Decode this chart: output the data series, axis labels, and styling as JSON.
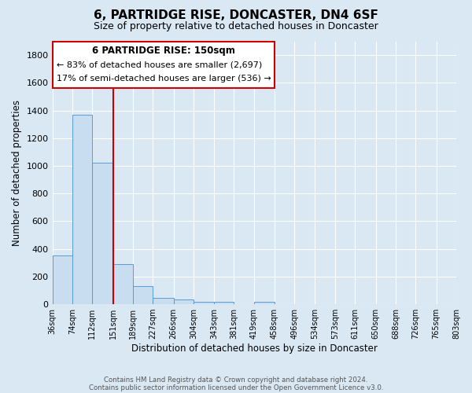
{
  "title": "6, PARTRIDGE RISE, DONCASTER, DN4 6SF",
  "subtitle": "Size of property relative to detached houses in Doncaster",
  "xlabel": "Distribution of detached houses by size in Doncaster",
  "ylabel": "Number of detached properties",
  "footer_line1": "Contains HM Land Registry data © Crown copyright and database right 2024.",
  "footer_line2": "Contains public sector information licensed under the Open Government Licence v3.0.",
  "annotation_title": "6 PARTRIDGE RISE: 150sqm",
  "annotation_line1": "← 83% of detached houses are smaller (2,697)",
  "annotation_line2": "17% of semi-detached houses are larger (536) →",
  "vline_x": 151,
  "bar_color": "#c9ddf0",
  "bar_edge_color": "#5b9bd5",
  "vline_color": "#cc0000",
  "background_color": "#dae8f4",
  "plot_bg_color": "#dae8f4",
  "grid_color": "#ffffff",
  "annotation_box_edge": "#cc0000",
  "bin_edges": [
    36,
    74,
    112,
    151,
    189,
    227,
    266,
    304,
    343,
    381,
    419,
    458,
    496,
    534,
    573,
    611,
    650,
    688,
    726,
    765,
    803
  ],
  "bin_labels": [
    "36sqm",
    "74sqm",
    "112sqm",
    "151sqm",
    "189sqm",
    "227sqm",
    "266sqm",
    "304sqm",
    "343sqm",
    "381sqm",
    "419sqm",
    "458sqm",
    "496sqm",
    "534sqm",
    "573sqm",
    "611sqm",
    "650sqm",
    "688sqm",
    "726sqm",
    "765sqm",
    "803sqm"
  ],
  "counts": [
    355,
    1370,
    1020,
    290,
    130,
    45,
    35,
    18,
    18,
    0,
    18,
    0,
    0,
    0,
    0,
    0,
    0,
    0,
    0,
    0
  ],
  "ylim": [
    0,
    1900
  ],
  "yticks": [
    0,
    200,
    400,
    600,
    800,
    1000,
    1200,
    1400,
    1600,
    1800
  ]
}
